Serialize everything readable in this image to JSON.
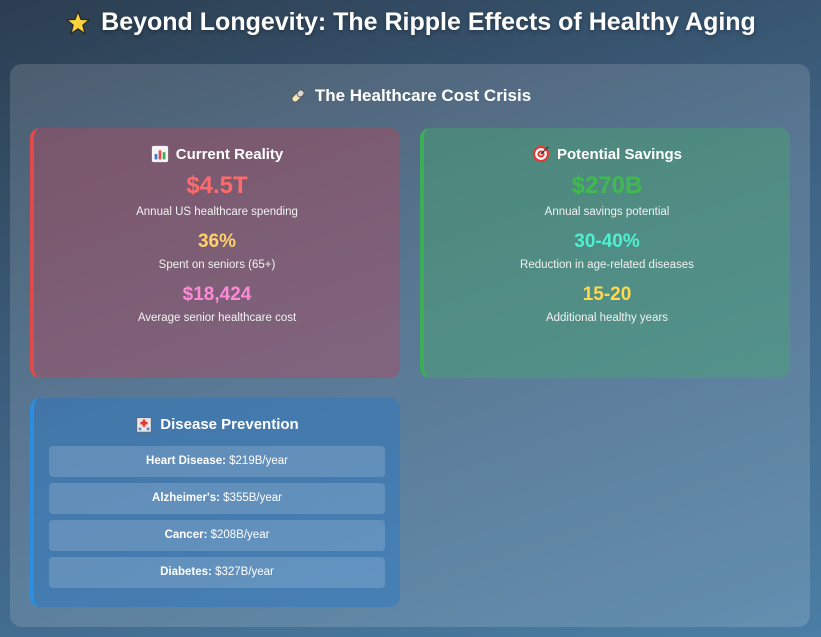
{
  "title": "Beyond Longevity: The Ripple Effects of Healthy Aging",
  "title_icon": "star-icon",
  "section": {
    "title": "The Healthcare Cost Crisis",
    "icon": "pill-icon"
  },
  "current_reality": {
    "title": "Current Reality",
    "icon": "bar-chart-icon",
    "accent": "#e04a4a",
    "stats": [
      {
        "value": "$4.5T",
        "label": "Annual US healthcare spending",
        "color": "#ff6b6b"
      },
      {
        "value": "36%",
        "label": "Spent on seniors (65+)",
        "color": "#ffd166"
      },
      {
        "value": "$18,424",
        "label": "Average senior healthcare cost",
        "color": "#ff8ad8"
      }
    ]
  },
  "potential_savings": {
    "title": "Potential Savings",
    "icon": "target-icon",
    "accent": "#3cae55",
    "stats": [
      {
        "value": "$270B",
        "label": "Annual savings potential",
        "color": "#3fb950"
      },
      {
        "value": "30-40%",
        "label": "Reduction in age-related diseases",
        "color": "#4ef0d0"
      },
      {
        "value": "15-20",
        "label": "Additional healthy years",
        "color": "#ffd84d"
      }
    ]
  },
  "disease_prevention": {
    "title": "Disease Prevention",
    "icon": "hospital-icon",
    "accent": "#2b8ee0",
    "items": [
      {
        "name": "Heart Disease:",
        "value": " $219B/year"
      },
      {
        "name": "Alzheimer's:",
        "value": " $355B/year"
      },
      {
        "name": "Cancer:",
        "value": " $208B/year"
      },
      {
        "name": "Diabetes:",
        "value": " $327B/year"
      }
    ]
  }
}
